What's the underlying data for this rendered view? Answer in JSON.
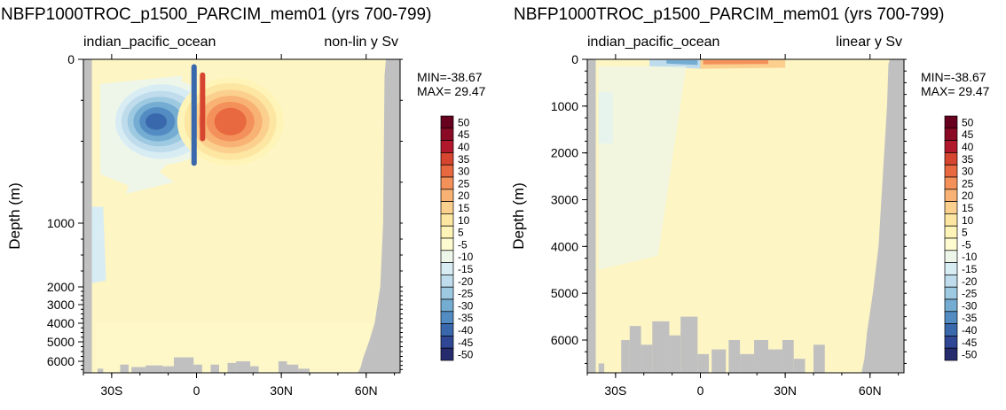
{
  "chart_data": [
    {
      "type": "heatmap",
      "title": "NBFP1000TROC_p1500_PARCIM_mem01 (yrs 700-799)",
      "subtitle_left": "indian_pacific_ocean",
      "subtitle_right": "non-lin y Sv",
      "ylabel": "Depth (m)",
      "x_ticks": [
        "30S",
        "0",
        "30N",
        "60N"
      ],
      "x_tick_values": [
        -30,
        0,
        30,
        60
      ],
      "xlim": [
        -40,
        72
      ],
      "y_scale": "nonlinear",
      "y_ticks": [
        "0",
        "1000",
        "2000",
        "3000",
        "4000",
        "5000",
        "6000"
      ],
      "y_tick_values": [
        0,
        1000,
        2000,
        3000,
        4000,
        5000,
        6000
      ],
      "ylim": [
        0,
        6700
      ],
      "stats": [
        "MIN=-38.67",
        "MAX= 29.47"
      ],
      "features": [
        {
          "kind": "negative_cell",
          "lon": -12,
          "depth": 380,
          "value": -38.67
        },
        {
          "kind": "positive_cell",
          "lon": 12,
          "depth": 380,
          "value": 29.47
        }
      ]
    },
    {
      "type": "heatmap",
      "title": "NBFP1000TROC_p1500_PARCIM_mem01 (yrs 700-799)",
      "subtitle_left": "indian_pacific_ocean",
      "subtitle_right": "linear y Sv",
      "ylabel": "Depth (m)",
      "x_ticks": [
        "30S",
        "0",
        "30N",
        "60N"
      ],
      "x_tick_values": [
        -30,
        0,
        30,
        60
      ],
      "xlim": [
        -40,
        72
      ],
      "y_scale": "linear",
      "y_ticks": [
        "0",
        "1000",
        "2000",
        "3000",
        "4000",
        "5000",
        "6000"
      ],
      "y_tick_values": [
        0,
        1000,
        2000,
        3000,
        4000,
        5000,
        6000
      ],
      "ylim": [
        0,
        6700
      ],
      "stats": [
        "MIN=-38.67",
        "MAX= 29.47"
      ]
    }
  ],
  "colorbar": {
    "labels": [
      "50",
      "45",
      "40",
      "35",
      "30",
      "25",
      "20",
      "15",
      "10",
      "5",
      "-5",
      "-10",
      "-15",
      "-20",
      "-25",
      "-30",
      "-35",
      "-40",
      "-45",
      "-50"
    ],
    "colors": [
      "#67001f",
      "#8a0a26",
      "#b2182b",
      "#d6452f",
      "#e8683f",
      "#f4915a",
      "#f8b274",
      "#fbd08f",
      "#fce6a2",
      "#fff4b8",
      "#fdfbcf",
      "#eef6ea",
      "#d8ecf4",
      "#bfdcec",
      "#9dc9e1",
      "#74acd2",
      "#538cc2",
      "#3a68ad",
      "#2f4795",
      "#262b6e"
    ],
    "ocean_color": "#fdf5c4",
    "land_color": "#c0c0c0"
  }
}
